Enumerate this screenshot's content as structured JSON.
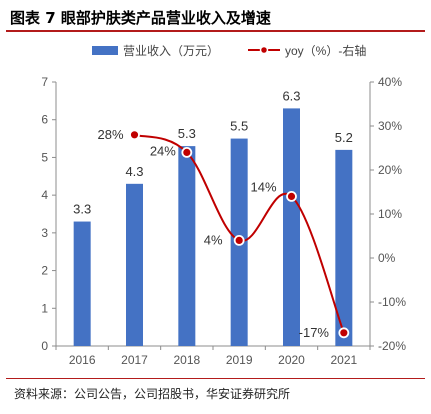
{
  "figure": {
    "title": "图表 7 眼部护肤类产品营业收入及增速",
    "source": "资料来源：公司公告，公司招股书，华安证券研究所"
  },
  "chart_data": {
    "type": "bar",
    "categories": [
      "2016",
      "2017",
      "2018",
      "2019",
      "2020",
      "2021"
    ],
    "series": [
      {
        "name": "营业收入（万元）",
        "type": "bar",
        "axis": "left",
        "color": "#4472c4",
        "values": [
          3.3,
          4.3,
          5.3,
          5.5,
          6.3,
          5.2
        ],
        "labels": [
          "3.3",
          "4.3",
          "5.3",
          "5.5",
          "6.3",
          "5.2"
        ]
      },
      {
        "name": "yoy（%）-右轴",
        "type": "line",
        "axis": "right",
        "color": "#c00000",
        "values": [
          null,
          28,
          24,
          4,
          14,
          -17
        ],
        "labels": [
          "",
          "28%",
          "24%",
          "4%",
          "14%",
          "-17%"
        ]
      }
    ],
    "y_left": {
      "min": 0,
      "max": 7,
      "ticks": [
        "0",
        "1",
        "2",
        "3",
        "4",
        "5",
        "6",
        "7"
      ]
    },
    "y_right": {
      "min": -20,
      "max": 40,
      "ticks": [
        "-20%",
        "-10%",
        "0%",
        "10%",
        "20%",
        "30%",
        "40%"
      ]
    },
    "legend_position": "top",
    "grid": false
  }
}
